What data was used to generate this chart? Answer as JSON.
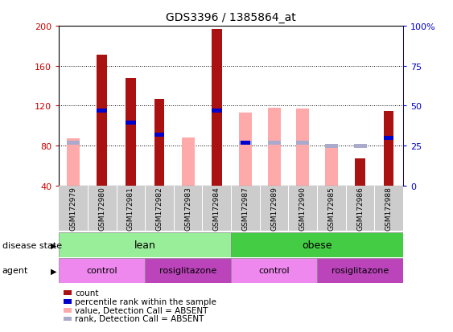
{
  "title": "GDS3396 / 1385864_at",
  "samples": [
    "GSM172979",
    "GSM172980",
    "GSM172981",
    "GSM172982",
    "GSM172983",
    "GSM172984",
    "GSM172987",
    "GSM172989",
    "GSM172990",
    "GSM172985",
    "GSM172986",
    "GSM172988"
  ],
  "baseline": 40,
  "ylim_left": [
    40,
    200
  ],
  "ylim_right": [
    0,
    100
  ],
  "yticks_left": [
    40,
    80,
    120,
    160,
    200
  ],
  "ytick_labels_left": [
    "40",
    "80",
    "120",
    "160",
    "200"
  ],
  "yticks_right": [
    0,
    25,
    50,
    75,
    100
  ],
  "ytick_labels_right": [
    "0",
    "25",
    "50",
    "75",
    "100%"
  ],
  "count_values": [
    0,
    171,
    148,
    127,
    0,
    197,
    0,
    0,
    0,
    0,
    67,
    115
  ],
  "percentile_rank": [
    0,
    115,
    103,
    91,
    0,
    115,
    83,
    0,
    0,
    0,
    0,
    88
  ],
  "absent_value": [
    87,
    0,
    0,
    0,
    88,
    0,
    113,
    118,
    117,
    80,
    0,
    0
  ],
  "absent_rank": [
    83,
    0,
    0,
    0,
    0,
    0,
    83,
    83,
    83,
    80,
    80,
    0
  ],
  "bar_width": 0.35,
  "absent_bar_width": 0.45,
  "color_count": "#aa1111",
  "color_percentile": "#0000cc",
  "color_absent_value": "#ffaaaa",
  "color_absent_rank": "#aaaacc",
  "disease_lean_color": "#99ee99",
  "disease_obese_color": "#44cc44",
  "agent_control_color": "#ee88ee",
  "agent_rosi_color": "#bb44bb",
  "xticklabel_bg": "#cccccc"
}
